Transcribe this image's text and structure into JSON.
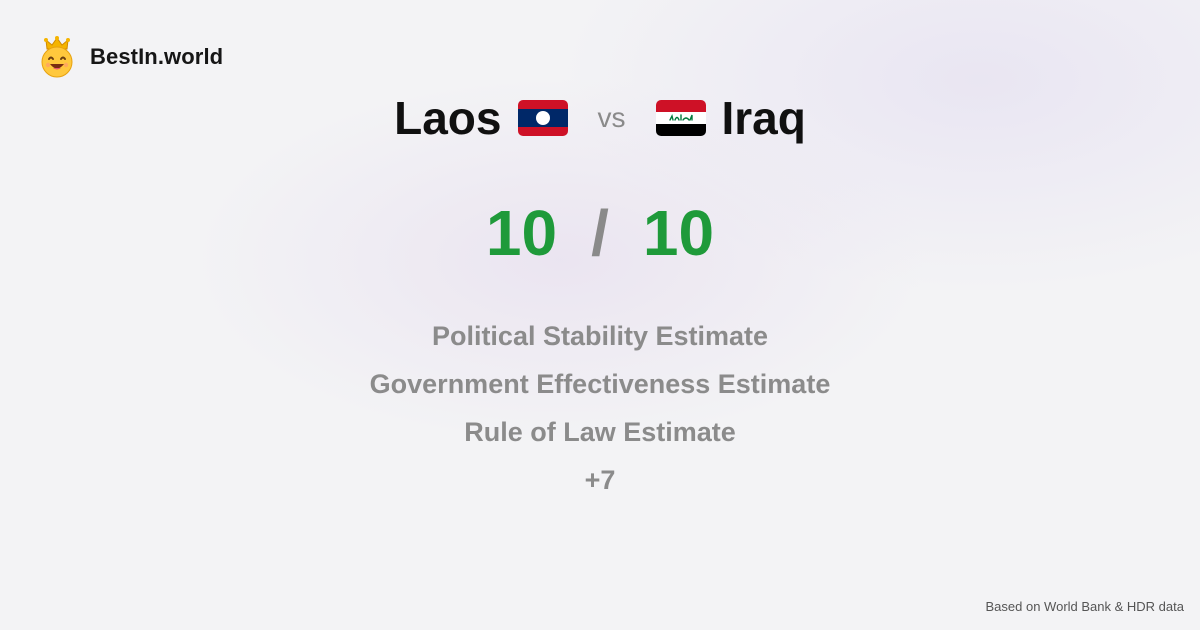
{
  "brand": {
    "name": "BestIn.world",
    "logo_icon": "crown-smiley-icon"
  },
  "comparison": {
    "left_country": "Laos",
    "right_country": "Iraq",
    "vs_label": "vs",
    "left_score": "10",
    "separator": "/",
    "right_score": "10"
  },
  "metrics": [
    "Political Stability Estimate",
    "Government Effectiveness Estimate",
    "Rule of Law Estimate",
    "+7"
  ],
  "footer": {
    "source": "Based on World Bank & HDR data"
  },
  "colors": {
    "score_green": "#1f9a3a",
    "muted_gray": "#8b8b8b",
    "laos_red": "#ce1126",
    "laos_blue": "#002868",
    "iraq_red": "#ce1126",
    "iraq_black": "#000000",
    "iraq_green": "#007a3d"
  }
}
